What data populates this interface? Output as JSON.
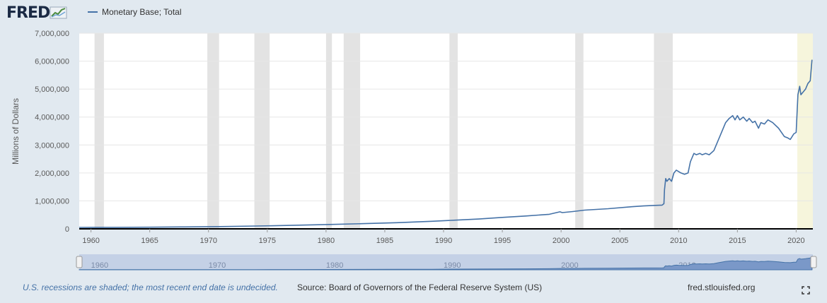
{
  "logo": {
    "text": "FRED"
  },
  "legend": {
    "series_label": "Monetary Base; Total",
    "color": "#4572a7"
  },
  "footer": {
    "recession_note": "U.S. recessions are shaded; the most recent end date is undecided.",
    "source": "Source: Board of Governors of the Federal Reserve System (US)",
    "url": "fred.stlouisfed.org"
  },
  "colors": {
    "line": "#4572a7",
    "recession": "#e3e3e3",
    "recession_undecided": "#f6f5dc",
    "page_background": "#e1e9f0",
    "navigator_fill": "#c4d1e6"
  },
  "navigator": {
    "labels": [
      "1960",
      "1970",
      "1980",
      "1990",
      "2000",
      "2010"
    ]
  },
  "chart_data": {
    "type": "line",
    "ylabel": "Millions of Dollars",
    "xlim": [
      1959.0,
      2021.42
    ],
    "ylim": [
      0,
      7000000
    ],
    "x_ticks": [
      "1960",
      "1965",
      "1970",
      "1975",
      "1980",
      "1985",
      "1990",
      "1995",
      "2000",
      "2005",
      "2010",
      "2015",
      "2020"
    ],
    "y_ticks": [
      "0",
      "1,000,000",
      "2,000,000",
      "3,000,000",
      "4,000,000",
      "5,000,000",
      "6,000,000",
      "7,000,000"
    ],
    "grid": true,
    "recessions": [
      [
        1960.3,
        1961.1
      ],
      [
        1969.9,
        1970.9
      ],
      [
        1973.9,
        1975.2
      ],
      [
        1980.0,
        1980.5
      ],
      [
        1981.5,
        1982.9
      ],
      [
        1990.5,
        1991.2
      ],
      [
        2001.2,
        2001.9
      ],
      [
        2007.9,
        2009.5
      ]
    ],
    "recession_undecided": [
      2020.1,
      2021.42
    ],
    "series": [
      {
        "name": "Monetary Base; Total",
        "x": [
          1959,
          1962,
          1965,
          1968,
          1971,
          1974,
          1977,
          1980,
          1983,
          1986,
          1989,
          1991,
          1993,
          1995,
          1997,
          1999,
          1999.9,
          2000.1,
          2001,
          2002,
          2004,
          2006,
          2007,
          2008,
          2008.6,
          2008.75,
          2008.8,
          2008.9,
          2009,
          2009.2,
          2009.4,
          2009.6,
          2009.8,
          2010,
          2010.2,
          2010.5,
          2010.8,
          2011,
          2011.3,
          2011.5,
          2011.8,
          2012,
          2012.3,
          2012.6,
          2013,
          2013.5,
          2014,
          2014.3,
          2014.6,
          2014.8,
          2015,
          2015.2,
          2015.5,
          2015.8,
          2016,
          2016.3,
          2016.5,
          2016.8,
          2017,
          2017.3,
          2017.6,
          2018,
          2018.5,
          2019,
          2019.3,
          2019.5,
          2019.8,
          2020,
          2020.15,
          2020.3,
          2020.4,
          2020.6,
          2020.8,
          2021,
          2021.2,
          2021.35
        ],
        "values": [
          50000,
          53000,
          58000,
          68000,
          80000,
          100000,
          125000,
          155000,
          185000,
          220000,
          270000,
          310000,
          350000,
          410000,
          460000,
          520000,
          610000,
          580000,
          620000,
          670000,
          720000,
          790000,
          820000,
          840000,
          850000,
          900000,
          1400000,
          1800000,
          1700000,
          1800000,
          1700000,
          2000000,
          2100000,
          2050000,
          2000000,
          1950000,
          2000000,
          2400000,
          2700000,
          2650000,
          2700000,
          2650000,
          2700000,
          2650000,
          2800000,
          3300000,
          3800000,
          3950000,
          4050000,
          3900000,
          4050000,
          3900000,
          4000000,
          3850000,
          3950000,
          3800000,
          3850000,
          3600000,
          3800000,
          3750000,
          3900000,
          3800000,
          3600000,
          3300000,
          3250000,
          3200000,
          3400000,
          3450000,
          4800000,
          5100000,
          4800000,
          4900000,
          5000000,
          5200000,
          5300000,
          6050000
        ]
      }
    ]
  }
}
